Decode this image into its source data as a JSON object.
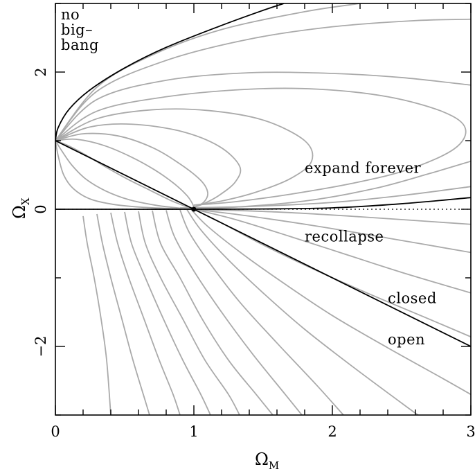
{
  "chart_data": {
    "type": "line",
    "title": "",
    "xlabel": "Ω",
    "xlabel_sub": "M",
    "ylabel": "Ω",
    "ylabel_sub": "X",
    "xlim": [
      0,
      3
    ],
    "ylim": [
      -3,
      3
    ],
    "x_ticks": [
      0,
      1,
      2,
      3
    ],
    "x_tick_labels": [
      "0",
      "1",
      "2",
      "3"
    ],
    "x_minor_step": 0.2,
    "y_ticks": [
      -2,
      0,
      2
    ],
    "y_tick_labels": [
      "−2",
      "0",
      "2"
    ],
    "y_minor_step": 1,
    "grid": false,
    "legend": "none",
    "colors": {
      "trajectory": "#aaaaaa",
      "boundary": "#000000"
    },
    "critical_point": {
      "x": 1,
      "y": 0
    },
    "boundaries": [
      {
        "kind": "no-big-bang",
        "points": [
          [
            0,
            1
          ],
          [
            0.02,
            1.19
          ],
          [
            0.1,
            1.46
          ],
          [
            0.25,
            1.74
          ],
          [
            0.5,
            2.06
          ],
          [
            0.8,
            2.36
          ],
          [
            1.2,
            2.68
          ],
          [
            1.5,
            2.9
          ],
          [
            1.65,
            3.0
          ]
        ]
      },
      {
        "kind": "flat",
        "points": [
          [
            0,
            1
          ],
          [
            1,
            0
          ],
          [
            3,
            -2
          ]
        ]
      },
      {
        "kind": "expand-recollapse",
        "points": [
          [
            0,
            0
          ],
          [
            1,
            0
          ],
          [
            1.5,
            0.004
          ],
          [
            2,
            0.02
          ],
          [
            2.5,
            0.08
          ],
          [
            3,
            0.17
          ]
        ]
      }
    ],
    "trajectories_upper": [
      {
        "points": [
          [
            0,
            1
          ],
          [
            0.3,
            1.78
          ],
          [
            0.7,
            2.25
          ],
          [
            1.2,
            2.62
          ],
          [
            1.8,
            2.88
          ],
          [
            2.2,
            3.0
          ]
        ]
      },
      {
        "points": [
          [
            0,
            1
          ],
          [
            0.3,
            1.72
          ],
          [
            0.8,
            2.17
          ],
          [
            1.4,
            2.48
          ],
          [
            2.0,
            2.66
          ],
          [
            2.6,
            2.75
          ],
          [
            3.0,
            2.77
          ]
        ]
      },
      {
        "points": [
          [
            0,
            1
          ],
          [
            0.3,
            1.6
          ],
          [
            0.8,
            1.88
          ],
          [
            1.4,
            1.99
          ],
          [
            2.0,
            1.98
          ],
          [
            2.5,
            1.92
          ],
          [
            3.0,
            1.81
          ]
        ]
      },
      {
        "points": [
          [
            0,
            1
          ],
          [
            0.3,
            1.43
          ],
          [
            0.8,
            1.64
          ],
          [
            1.4,
            1.75
          ],
          [
            1.9,
            1.75
          ],
          [
            2.4,
            1.64
          ],
          [
            2.8,
            1.42
          ],
          [
            2.96,
            1.18
          ],
          [
            2.88,
            0.88
          ],
          [
            2.55,
            0.58
          ],
          [
            2.15,
            0.38
          ],
          [
            1.7,
            0.22
          ],
          [
            1.3,
            0.11
          ],
          [
            1.0,
            0.06
          ]
        ]
      },
      {
        "points": [
          [
            0,
            1
          ],
          [
            0.3,
            1.32
          ],
          [
            0.7,
            1.45
          ],
          [
            1.1,
            1.44
          ],
          [
            1.5,
            1.3
          ],
          [
            1.8,
            1.0
          ],
          [
            1.85,
            0.7
          ],
          [
            1.7,
            0.45
          ],
          [
            1.45,
            0.25
          ],
          [
            1.2,
            0.12
          ],
          [
            1.0,
            0.06
          ]
        ]
      },
      {
        "points": [
          [
            0,
            1
          ],
          [
            0.25,
            1.2
          ],
          [
            0.55,
            1.24
          ],
          [
            0.9,
            1.14
          ],
          [
            1.18,
            0.92
          ],
          [
            1.33,
            0.63
          ],
          [
            1.3,
            0.4
          ],
          [
            1.18,
            0.2
          ],
          [
            1.07,
            0.08
          ],
          [
            1.0,
            0.03
          ]
        ]
      },
      {
        "points": [
          [
            0,
            1
          ],
          [
            0.2,
            1.1
          ],
          [
            0.45,
            1.07
          ],
          [
            0.7,
            0.9
          ],
          [
            0.9,
            0.66
          ],
          [
            1.05,
            0.42
          ],
          [
            1.1,
            0.24
          ],
          [
            1.07,
            0.1
          ],
          [
            1.0,
            0.03
          ]
        ]
      },
      {
        "points": [
          [
            0,
            1
          ],
          [
            0.15,
            1.02
          ],
          [
            0.35,
            0.93
          ],
          [
            0.55,
            0.76
          ],
          [
            0.72,
            0.57
          ],
          [
            0.86,
            0.37
          ],
          [
            0.95,
            0.2
          ],
          [
            0.99,
            0.08
          ],
          [
            1.0,
            0.02
          ]
        ]
      },
      {
        "points": [
          [
            0,
            1
          ],
          [
            0.1,
            0.92
          ],
          [
            0.22,
            0.79
          ],
          [
            0.36,
            0.62
          ],
          [
            0.52,
            0.44
          ],
          [
            0.68,
            0.28
          ],
          [
            0.82,
            0.14
          ],
          [
            0.93,
            0.05
          ],
          [
            1.0,
            0.01
          ]
        ]
      },
      {
        "points": [
          [
            0,
            1
          ],
          [
            0.05,
            0.84
          ],
          [
            0.12,
            0.64
          ],
          [
            0.22,
            0.44
          ],
          [
            0.36,
            0.27
          ],
          [
            0.53,
            0.14
          ],
          [
            0.72,
            0.06
          ],
          [
            0.88,
            0.02
          ],
          [
            1.0,
            0.005
          ]
        ]
      },
      {
        "points": [
          [
            0,
            1
          ],
          [
            0.02,
            0.78
          ],
          [
            0.06,
            0.5
          ],
          [
            0.13,
            0.3
          ],
          [
            0.25,
            0.15
          ],
          [
            0.42,
            0.07
          ],
          [
            0.62,
            0.03
          ],
          [
            0.85,
            0.01
          ],
          [
            1.0,
            0.003
          ]
        ]
      },
      {
        "points": [
          [
            0.9,
            0.02
          ],
          [
            1.4,
            0.04
          ],
          [
            2.0,
            0.1
          ],
          [
            2.5,
            0.2
          ],
          [
            3.0,
            0.33
          ]
        ]
      },
      {
        "points": [
          [
            0.7,
            0.0
          ],
          [
            1.2,
            0.02
          ],
          [
            1.8,
            0.12
          ],
          [
            2.3,
            0.3
          ],
          [
            2.7,
            0.52
          ],
          [
            3.0,
            0.7
          ]
        ]
      }
    ],
    "trajectories_lower": [
      {
        "points": [
          [
            0.2,
            -0.1
          ],
          [
            0.23,
            -0.5
          ],
          [
            0.28,
            -1.0
          ],
          [
            0.33,
            -1.6
          ],
          [
            0.37,
            -2.2
          ],
          [
            0.4,
            -3.0
          ]
        ]
      },
      {
        "points": [
          [
            0.3,
            -0.07
          ],
          [
            0.34,
            -0.5
          ],
          [
            0.4,
            -1.0
          ],
          [
            0.48,
            -1.6
          ],
          [
            0.56,
            -2.2
          ],
          [
            0.65,
            -2.8
          ],
          [
            0.68,
            -3.0
          ]
        ]
      },
      {
        "points": [
          [
            0.4,
            -0.05
          ],
          [
            0.45,
            -0.5
          ],
          [
            0.53,
            -1.0
          ],
          [
            0.64,
            -1.6
          ],
          [
            0.75,
            -2.2
          ],
          [
            0.85,
            -2.7
          ],
          [
            0.9,
            -3.0
          ]
        ]
      },
      {
        "points": [
          [
            0.5,
            -0.04
          ],
          [
            0.55,
            -0.5
          ],
          [
            0.65,
            -1.0
          ],
          [
            0.78,
            -1.6
          ],
          [
            0.92,
            -2.2
          ],
          [
            1.05,
            -2.7
          ],
          [
            1.12,
            -3.0
          ]
        ]
      },
      {
        "points": [
          [
            0.6,
            -0.03
          ],
          [
            0.65,
            -0.5
          ],
          [
            0.76,
            -1.0
          ],
          [
            0.92,
            -1.6
          ],
          [
            1.08,
            -2.2
          ],
          [
            1.25,
            -2.7
          ],
          [
            1.33,
            -3.0
          ]
        ]
      },
      {
        "points": [
          [
            0.7,
            -0.02
          ],
          [
            0.76,
            -0.5
          ],
          [
            0.9,
            -1.0
          ],
          [
            1.06,
            -1.6
          ],
          [
            1.25,
            -2.2
          ],
          [
            1.45,
            -2.7
          ],
          [
            1.57,
            -3.0
          ]
        ]
      },
      {
        "points": [
          [
            0.8,
            -0.015
          ],
          [
            0.86,
            -0.4
          ],
          [
            1.0,
            -0.9
          ],
          [
            1.2,
            -1.5
          ],
          [
            1.42,
            -2.1
          ],
          [
            1.66,
            -2.7
          ],
          [
            1.78,
            -3.0
          ]
        ]
      },
      {
        "points": [
          [
            0.9,
            -0.01
          ],
          [
            0.97,
            -0.35
          ],
          [
            1.12,
            -0.8
          ],
          [
            1.33,
            -1.35
          ],
          [
            1.6,
            -1.95
          ],
          [
            1.88,
            -2.55
          ],
          [
            2.08,
            -3.0
          ]
        ]
      },
      {
        "points": [
          [
            0.95,
            -0.005
          ],
          [
            1.05,
            -0.3
          ],
          [
            1.24,
            -0.72
          ],
          [
            1.5,
            -1.22
          ],
          [
            1.8,
            -1.75
          ],
          [
            2.15,
            -2.3
          ],
          [
            2.55,
            -2.9
          ],
          [
            2.62,
            -3.0
          ]
        ]
      },
      {
        "points": [
          [
            0.98,
            -0.002
          ],
          [
            1.1,
            -0.25
          ],
          [
            1.35,
            -0.65
          ],
          [
            1.65,
            -1.08
          ],
          [
            2.0,
            -1.55
          ],
          [
            2.4,
            -2.02
          ],
          [
            2.8,
            -2.47
          ],
          [
            3.0,
            -2.7
          ]
        ]
      },
      {
        "points": [
          [
            1.0,
            0.0
          ],
          [
            1.2,
            -0.2
          ],
          [
            1.5,
            -0.52
          ],
          [
            1.85,
            -0.86
          ],
          [
            2.25,
            -1.22
          ],
          [
            2.65,
            -1.56
          ],
          [
            3.0,
            -1.86
          ]
        ]
      },
      {
        "points": [
          [
            1.0,
            0.0
          ],
          [
            1.3,
            -0.15
          ],
          [
            1.7,
            -0.4
          ],
          [
            2.1,
            -0.66
          ],
          [
            2.5,
            -0.92
          ],
          [
            3.0,
            -1.22
          ]
        ]
      },
      {
        "points": [
          [
            1.0,
            0.0
          ],
          [
            1.4,
            -0.1
          ],
          [
            1.9,
            -0.25
          ],
          [
            2.4,
            -0.42
          ],
          [
            3.0,
            -0.63
          ]
        ]
      },
      {
        "points": [
          [
            1.0,
            0.0
          ],
          [
            1.6,
            -0.04
          ],
          [
            2.2,
            -0.11
          ],
          [
            3.0,
            -0.22
          ]
        ]
      }
    ],
    "annotations": [
      {
        "lines": [
          "no",
          "big–",
          "bang"
        ],
        "x": 0.04,
        "y": 2.93
      },
      {
        "lines": [
          "expand forever"
        ],
        "x": 1.8,
        "y": 0.6
      },
      {
        "lines": [
          "recollapse"
        ],
        "x": 1.8,
        "y": -0.4
      },
      {
        "lines": [
          "closed"
        ],
        "x": 2.4,
        "y": -1.3
      },
      {
        "lines": [
          "open"
        ],
        "x": 2.4,
        "y": -1.9
      }
    ]
  }
}
